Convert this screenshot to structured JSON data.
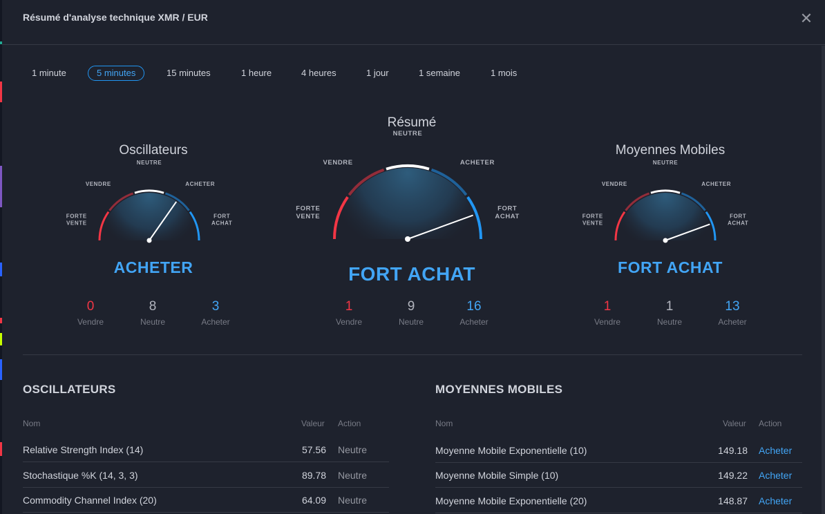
{
  "dialog": {
    "title": "Résumé d'analyse technique XMR / EUR",
    "close_glyph": "✕"
  },
  "tabs": [
    {
      "label": "1 minute",
      "active": false
    },
    {
      "label": "5 minutes",
      "active": true
    },
    {
      "label": "15 minutes",
      "active": false
    },
    {
      "label": "1 heure",
      "active": false
    },
    {
      "label": "4 heures",
      "active": false
    },
    {
      "label": "1 jour",
      "active": false
    },
    {
      "label": "1 semaine",
      "active": false
    },
    {
      "label": "1 mois",
      "active": false
    }
  ],
  "gauge_labels": {
    "strong_sell_1": "FORTE",
    "strong_sell_2": "VENTE",
    "sell": "VENDRE",
    "neutral": "NEUTRE",
    "buy": "ACHETER",
    "strong_buy_1": "FORT",
    "strong_buy_2": "ACHAT"
  },
  "colors": {
    "sell": "#f23645",
    "neutral": "#ffffff",
    "buy": "#2196f3",
    "buy_text": "#42a5f5",
    "background": "#1e222d"
  },
  "gauges": {
    "oscillators": {
      "title": "Oscillateurs",
      "verdict": "ACHETER",
      "needle_angle_deg": 55,
      "counts": {
        "sell": "0",
        "neutral": "8",
        "buy": "3"
      },
      "count_labels": {
        "sell": "Vendre",
        "neutral": "Neutre",
        "buy": "Acheter"
      }
    },
    "summary": {
      "title": "Résumé",
      "verdict": "FORT ACHAT",
      "needle_angle_deg": 20,
      "counts": {
        "sell": "1",
        "neutral": "9",
        "buy": "16"
      },
      "count_labels": {
        "sell": "Vendre",
        "neutral": "Neutre",
        "buy": "Acheter"
      }
    },
    "moving_averages": {
      "title": "Moyennes Mobiles",
      "verdict": "FORT ACHAT",
      "needle_angle_deg": 20,
      "counts": {
        "sell": "1",
        "neutral": "1",
        "buy": "13"
      },
      "count_labels": {
        "sell": "Vendre",
        "neutral": "Neutre",
        "buy": "Acheter"
      }
    }
  },
  "oscillators_table": {
    "title": "OSCILLATEURS",
    "headers": {
      "name": "Nom",
      "value": "Valeur",
      "action": "Action"
    },
    "rows": [
      {
        "name": "Relative Strength Index (14)",
        "value": "57.56",
        "action": "Neutre"
      },
      {
        "name": "Stochastique %K (14, 3, 3)",
        "value": "89.78",
        "action": "Neutre"
      },
      {
        "name": "Commodity Channel Index (20)",
        "value": "64.09",
        "action": "Neutre"
      }
    ]
  },
  "ma_table": {
    "title": "MOYENNES MOBILES",
    "headers": {
      "name": "Nom",
      "value": "Valeur",
      "action": "Action"
    },
    "rows": [
      {
        "name": "Moyenne Mobile Exponentielle (10)",
        "value": "149.18",
        "action": "Acheter"
      },
      {
        "name": "Moyenne Mobile Simple (10)",
        "value": "149.22",
        "action": "Acheter"
      },
      {
        "name": "Moyenne Mobile Exponentielle (20)",
        "value": "148.87",
        "action": "Acheter"
      }
    ]
  }
}
